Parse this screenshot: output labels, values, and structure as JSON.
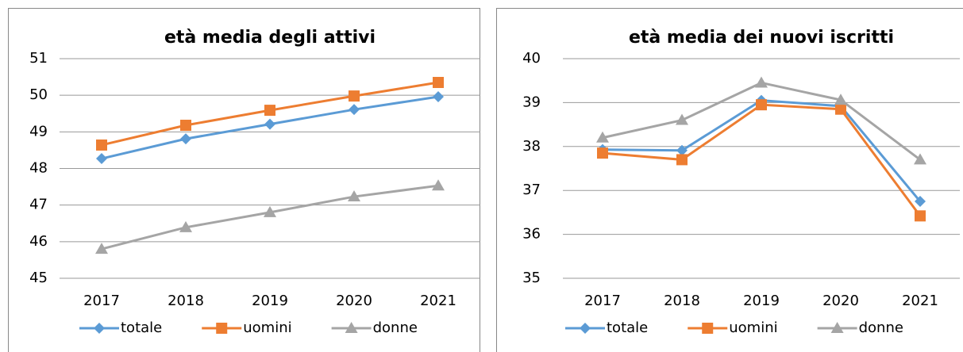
{
  "chart_data": [
    {
      "type": "line",
      "title": "età media degli attivi",
      "categories": [
        "2017",
        "2018",
        "2019",
        "2020",
        "2021"
      ],
      "series": [
        {
          "name": "totale",
          "color": "#5b9bd5",
          "marker": "diamond",
          "values": [
            48.27,
            48.81,
            49.21,
            49.61,
            49.96
          ]
        },
        {
          "name": "uomini",
          "color": "#ed7d31",
          "marker": "square",
          "values": [
            48.64,
            49.18,
            49.59,
            49.98,
            50.35
          ]
        },
        {
          "name": "donne",
          "color": "#a5a5a5",
          "marker": "triangle",
          "values": [
            45.8,
            46.39,
            46.8,
            47.23,
            47.53
          ]
        }
      ],
      "ylim": [
        45,
        51
      ],
      "yticks": [
        45,
        46,
        47,
        48,
        49,
        50,
        51
      ],
      "grid": true,
      "legend": "bottom"
    },
    {
      "type": "line",
      "title": "età media dei nuovi iscritti",
      "categories": [
        "2017",
        "2018",
        "2019",
        "2020",
        "2021"
      ],
      "series": [
        {
          "name": "totale",
          "color": "#5b9bd5",
          "marker": "diamond",
          "values": [
            37.93,
            37.91,
            39.05,
            38.92,
            36.75
          ]
        },
        {
          "name": "uomini",
          "color": "#ed7d31",
          "marker": "square",
          "values": [
            37.85,
            37.7,
            38.95,
            38.85,
            36.42
          ]
        },
        {
          "name": "donne",
          "color": "#a5a5a5",
          "marker": "triangle",
          "values": [
            38.2,
            38.6,
            39.45,
            39.06,
            37.7
          ]
        }
      ],
      "ylim": [
        35,
        40
      ],
      "yticks": [
        35,
        36,
        37,
        38,
        39,
        40
      ],
      "grid": true,
      "legend": "bottom"
    }
  ]
}
